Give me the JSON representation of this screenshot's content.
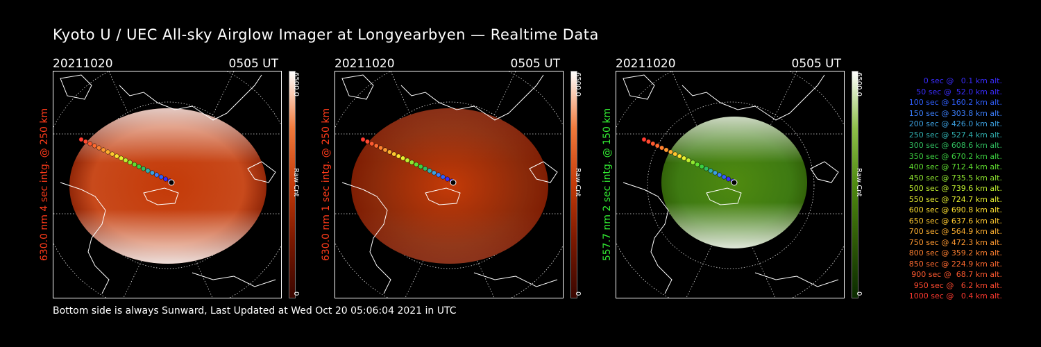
{
  "title": "Kyoto U / UEC All-sky Airglow Imager at Longyearbyen — Realtime Data",
  "footer": "Bottom side is always Sunward, Last Updated at Wed Oct 20 05:06:04 2021 in UTC",
  "panels": [
    {
      "date": "20211020",
      "time": "0505 UT",
      "ylabel": "630.0 nm  4 sec intg. @ 250 km",
      "ylabel_color": "#ff3b1a",
      "cbar_max": "6500.0",
      "cbar_min": "0",
      "cbar_unit": "Raw Cnt",
      "colors": [
        "#3a0600",
        "#7a1800",
        "#c43a08",
        "#f07a3c",
        "#ffffff"
      ],
      "image_color": "#c84a1c"
    },
    {
      "date": "20211020",
      "time": "0505 UT",
      "ylabel": "630.0 nm  1 sec intg. @ 250 km",
      "ylabel_color": "#ff3b1a",
      "cbar_max": "6500.0",
      "cbar_min": "0",
      "cbar_unit": "Raw Cnt",
      "colors": [
        "#3a0600",
        "#7a1800",
        "#c43a08",
        "#f07a3c",
        "#ffffff"
      ],
      "image_color": "#8a2a0a"
    },
    {
      "date": "20211020",
      "time": "0505 UT",
      "ylabel": "557.7 nm  2 sec intg. @ 150 km",
      "ylabel_color": "#33ee33",
      "cbar_max": "6500.0",
      "cbar_min": "0",
      "cbar_unit": "Raw Cnt",
      "colors": [
        "#0a2a00",
        "#2e5a06",
        "#4f8a10",
        "#8ec04a",
        "#ffffff"
      ],
      "image_color": "#3e7a12"
    }
  ],
  "legend": [
    {
      "text": "0 sec @   0.1 km alt.",
      "color": "#3a2cff"
    },
    {
      "text": "50 sec @  52.0 km alt.",
      "color": "#3a2cff"
    },
    {
      "text": "100 sec @ 160.2 km alt.",
      "color": "#3060ff"
    },
    {
      "text": "150 sec @ 303.8 km alt.",
      "color": "#3c80ff"
    },
    {
      "text": "200 sec @ 426.0 km alt.",
      "color": "#3ca0e0"
    },
    {
      "text": "250 sec @ 527.4 km alt.",
      "color": "#30b0b0"
    },
    {
      "text": "300 sec @ 608.6 km alt.",
      "color": "#30c060"
    },
    {
      "text": "350 sec @ 670.2 km alt.",
      "color": "#3cd040"
    },
    {
      "text": "400 sec @ 712.4 km alt.",
      "color": "#60e030"
    },
    {
      "text": "450 sec @ 735.5 km alt.",
      "color": "#90e830"
    },
    {
      "text": "500 sec @ 739.6 km alt.",
      "color": "#c0f030"
    },
    {
      "text": "550 sec @ 724.7 km alt.",
      "color": "#e8f030"
    },
    {
      "text": "600 sec @ 690.8 km alt.",
      "color": "#ffe030"
    },
    {
      "text": "650 sec @ 637.6 km alt.",
      "color": "#ffc830"
    },
    {
      "text": "700 sec @ 564.9 km alt.",
      "color": "#ffb030"
    },
    {
      "text": "750 sec @ 472.3 km alt.",
      "color": "#ff9830"
    },
    {
      "text": "800 sec @ 359.2 km alt.",
      "color": "#ff8030"
    },
    {
      "text": "850 sec @ 224.9 km alt.",
      "color": "#ff6a30"
    },
    {
      "text": "900 sec @  68.7 km alt.",
      "color": "#ff5a30"
    },
    {
      "text": "950 sec @   6.2 km alt.",
      "color": "#ff4a30"
    },
    {
      "text": "1000 sec @   0.4 km alt.",
      "color": "#ff3a30"
    }
  ]
}
